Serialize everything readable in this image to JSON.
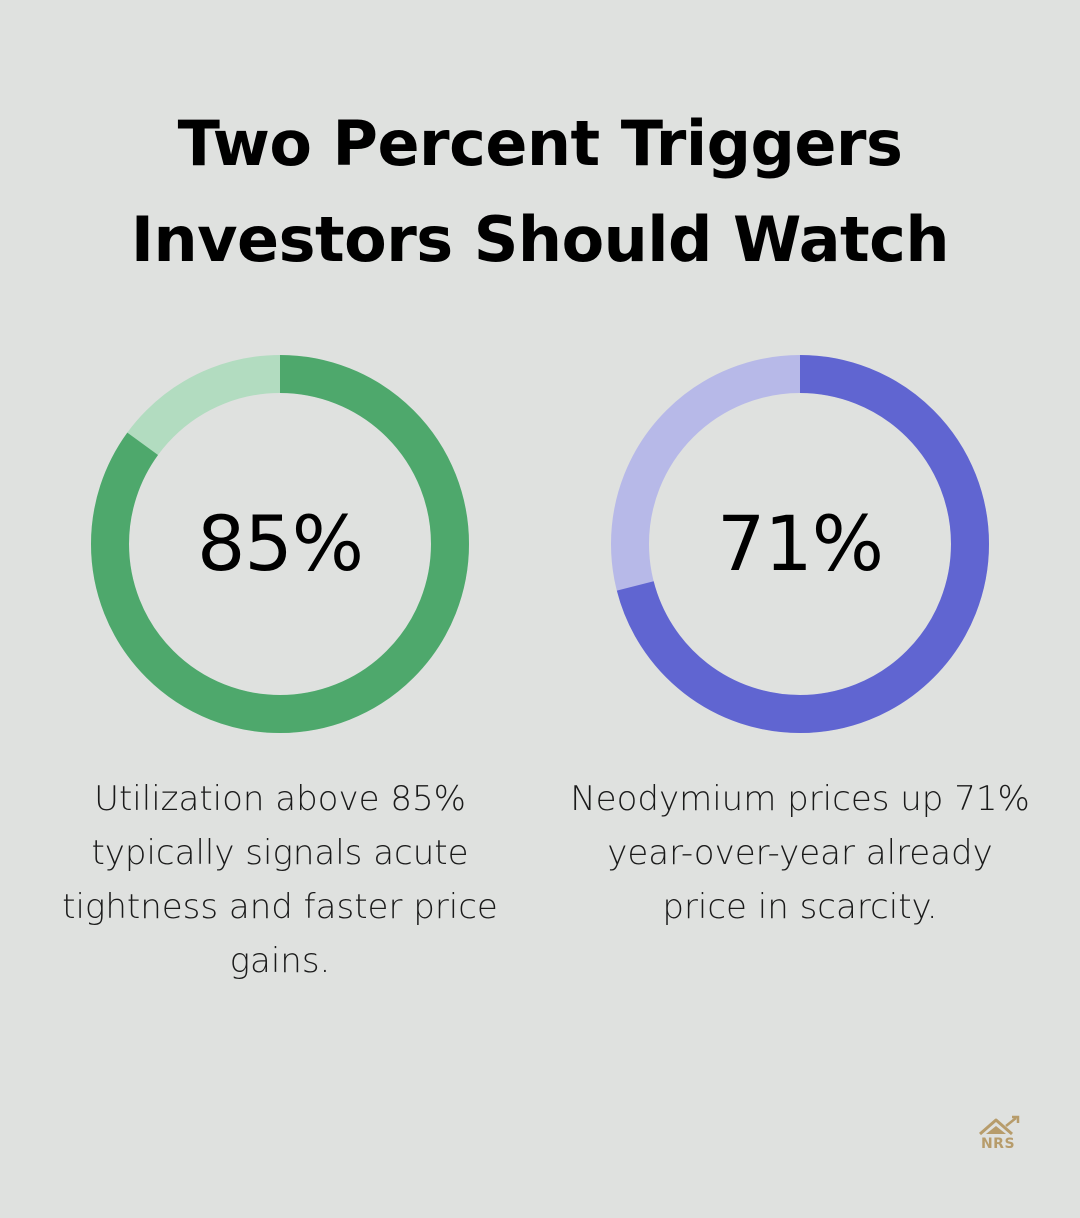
{
  "title_line1": "Two Percent Triggers",
  "title_line2": "Investors Should Watch",
  "chart_data": [
    {
      "type": "pie",
      "value_label": "85%",
      "value": 85,
      "colors": {
        "filled": "#4ea86c",
        "remaining": "#b2dcc0"
      },
      "caption": "Utilization above 85% typically signals acute tightness and faster price gains."
    },
    {
      "type": "pie",
      "value_label": "71%",
      "value": 71,
      "colors": {
        "filled": "#6065d1",
        "remaining": "#b7b9e8"
      },
      "caption": "Neodymium prices up 71% year-over-year already price in scarcity."
    }
  ],
  "logo": {
    "text": "NRS",
    "icon": "house-chart-icon",
    "color": "#b79c6b"
  }
}
